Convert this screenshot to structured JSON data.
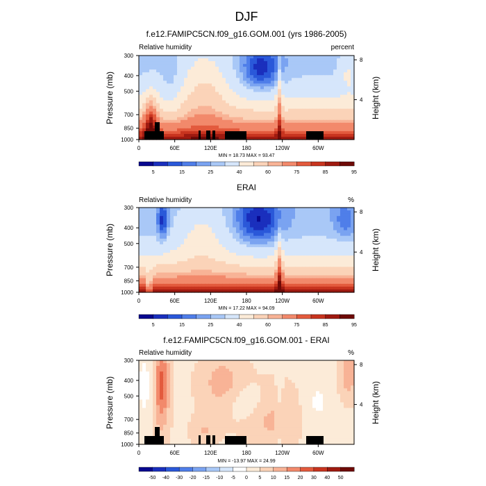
{
  "figure": {
    "title": "DJF"
  },
  "colors": {
    "seq": [
      "#08088f",
      "#1a2fbd",
      "#2a58d9",
      "#4f7ee9",
      "#7aa3f1",
      "#a9c8f7",
      "#d6e6fb",
      "#fcebd8",
      "#fbd3b8",
      "#f8b396",
      "#f2896b",
      "#e35a3d",
      "#c8341f",
      "#9f1a10",
      "#6e0a07"
    ],
    "div": [
      "#08088f",
      "#1a2fbd",
      "#2a58d9",
      "#4f7ee9",
      "#7aa3f1",
      "#a9c8f7",
      "#d6e6fb",
      "#ffffff",
      "#fcebd8",
      "#fbd3b8",
      "#f8b396",
      "#f2896b",
      "#e35a3d",
      "#c8341f",
      "#9f1a10",
      "#6e0a07"
    ],
    "land": "#000000"
  },
  "chart_data": [
    {
      "type": "heatmap",
      "title": "f.e12.FAMIPC5CN.f09_g16.GOM.001 (yrs 1986-2005)",
      "subtitle_left": "Relative humidity",
      "subtitle_right": "percent",
      "ylabel": "Pressure (mb)",
      "ylabel_right": "Height (km)",
      "x_ticks": [
        "0",
        "60E",
        "120E",
        "180",
        "120W",
        "60W"
      ],
      "y_ticks": [
        "300",
        "400",
        "500",
        "700",
        "850",
        "1000"
      ],
      "y_ticks_right": [
        "8",
        "4"
      ],
      "stats": "MIN = 18.73  MAX = 93.47",
      "colorbar_labels": [
        "5",
        "15",
        "25",
        "40",
        "60",
        "75",
        "85",
        "95"
      ],
      "xlim": [
        0,
        360
      ],
      "ylim": [
        1000,
        300
      ],
      "field": "model",
      "topo": true
    },
    {
      "type": "heatmap",
      "title": "ERAI",
      "subtitle_left": "Relative humidity",
      "subtitle_right": "%",
      "ylabel": "Pressure (mb)",
      "ylabel_right": "Height (km)",
      "x_ticks": [
        "0",
        "60E",
        "120E",
        "180",
        "120W",
        "60W"
      ],
      "y_ticks": [
        "300",
        "400",
        "500",
        "700",
        "850",
        "1000"
      ],
      "y_ticks_right": [
        "8",
        "4"
      ],
      "stats": "MIN = 17.22  MAX = 94.09",
      "colorbar_labels": [
        "5",
        "15",
        "25",
        "40",
        "60",
        "75",
        "85",
        "95"
      ],
      "xlim": [
        0,
        360
      ],
      "ylim": [
        1000,
        300
      ],
      "field": "obs",
      "topo": false
    },
    {
      "type": "heatmap",
      "title": "f.e12.FAMIPC5CN.f09_g16.GOM.001 - ERAI",
      "subtitle_left": "Relative humidity",
      "subtitle_right": "%",
      "ylabel": "Pressure (mb)",
      "ylabel_right": "Height (km)",
      "x_ticks": [
        "0",
        "60E",
        "120E",
        "180",
        "120W",
        "60W"
      ],
      "y_ticks": [
        "300",
        "400",
        "500",
        "700",
        "850",
        "1000"
      ],
      "y_ticks_right": [
        "8",
        "4"
      ],
      "stats": "MIN = -13.97  MAX = 24.99",
      "colorbar_labels": [
        "-50",
        "-40",
        "-30",
        "-20",
        "-15",
        "-10",
        "-5",
        "0",
        "5",
        "10",
        "15",
        "20",
        "30",
        "40",
        "50"
      ],
      "xlim": [
        0,
        360
      ],
      "ylim": [
        1000,
        300
      ],
      "field": "diff",
      "topo": true
    }
  ]
}
